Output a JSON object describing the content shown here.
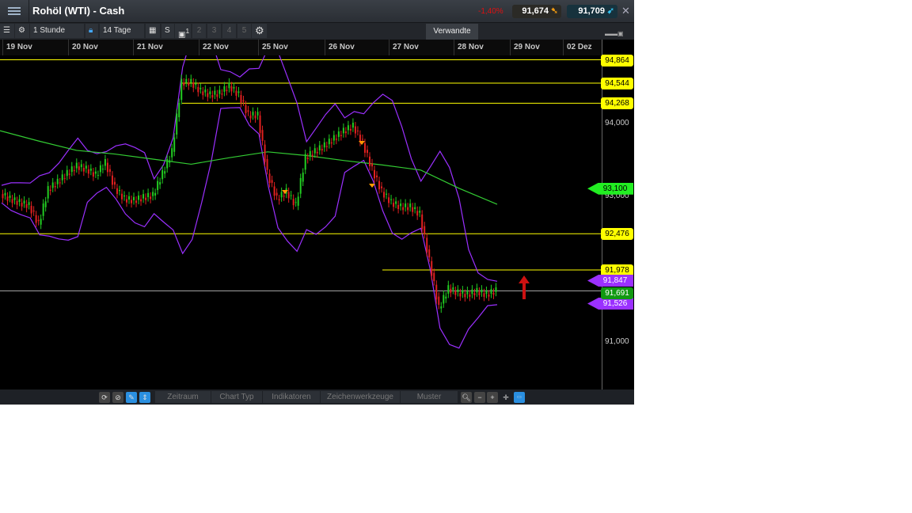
{
  "header": {
    "title": "Rohöl (WTI) - Cash",
    "change": "-1,40%",
    "sell": "91,674",
    "buy": "91,709",
    "close": "✕"
  },
  "toolbar": {
    "interval": "1 Stunde",
    "range": "14 Tage",
    "s_label": "S",
    "layout_sup": "1",
    "layouts": [
      "2",
      "3",
      "4",
      "5"
    ],
    "related_tab": "Verwandte"
  },
  "dates": [
    "19 Nov",
    "20 Nov",
    "21 Nov",
    "22 Nov",
    "25 Nov",
    "26 Nov",
    "27 Nov",
    "28 Nov",
    "29 Nov",
    "02 Dez"
  ],
  "bottom": {
    "tabs": [
      "Zeitraum",
      "Chart Typ",
      "Indikatoren",
      "Zeichenwerkzeuge",
      "Muster"
    ]
  },
  "colors": {
    "up": "#22cc22",
    "down": "#e02020",
    "bands": "#9b30ff",
    "ma": "#33cc33",
    "level": "#ffff00",
    "current": "#aaaaaa"
  },
  "axis_labels": [
    "94,000",
    "93,000",
    "91,000"
  ],
  "chart_data": {
    "type": "candlestick",
    "ylim": [
      90.5,
      95.0
    ],
    "closes": [
      93.02,
      92.95,
      92.9,
      92.86,
      92.6,
      93.08,
      93.18,
      93.3,
      93.4,
      93.36,
      93.28,
      93.45,
      93.1,
      92.95,
      92.93,
      92.97,
      93.0,
      93.3,
      93.6,
      94.55,
      94.55,
      94.43,
      94.38,
      94.4,
      94.5,
      94.38,
      94.1,
      94.1,
      93.3,
      92.95,
      93.05,
      92.86,
      93.52,
      93.6,
      93.68,
      93.78,
      93.88,
      93.95,
      93.72,
      93.35,
      93.05,
      92.9,
      92.84,
      92.84,
      92.74,
      92.1,
      91.45,
      91.72,
      91.66,
      91.64,
      91.68,
      91.64,
      91.69
    ],
    "moving_average": [
      93.89,
      93.75,
      93.62,
      93.57,
      93.5,
      93.43,
      93.52,
      93.6,
      93.55,
      93.48,
      93.42,
      93.35,
      93.1,
      92.88
    ],
    "levels": [
      {
        "value": "94,864",
        "v": 94.864,
        "full": true
      },
      {
        "value": "94,544",
        "v": 94.544,
        "full": false
      },
      {
        "value": "94,268",
        "v": 94.268,
        "full": false
      },
      {
        "value": "92,476",
        "v": 92.476,
        "full": true
      },
      {
        "value": "91,978",
        "v": 91.978,
        "full": false
      }
    ],
    "ma_label": {
      "value": "93,100",
      "v": 93.1
    },
    "band_upper": {
      "value": "91,847",
      "v": 91.847
    },
    "band_lower": {
      "value": "91,526",
      "v": 91.526
    },
    "current": {
      "value": "91,691",
      "v": 91.691
    }
  }
}
